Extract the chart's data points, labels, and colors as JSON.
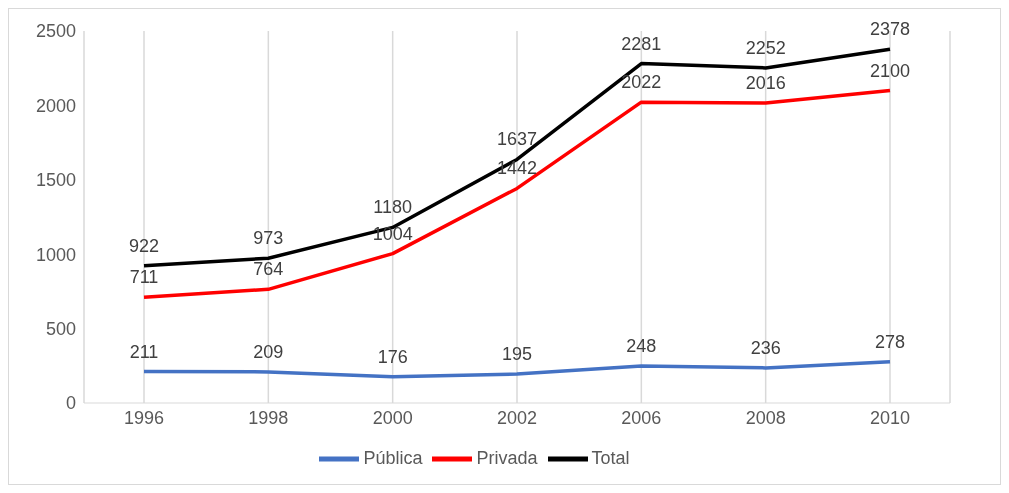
{
  "chart_data": {
    "type": "line",
    "categories": [
      "1996",
      "1998",
      "2000",
      "2002",
      "2006",
      "2008",
      "2010"
    ],
    "series": [
      {
        "name": "Pública",
        "color": "#4472c4",
        "values": [
          211,
          209,
          176,
          195,
          248,
          236,
          278
        ]
      },
      {
        "name": "Privada",
        "color": "#ff0000",
        "values": [
          711,
          764,
          1004,
          1442,
          2022,
          2016,
          2100
        ]
      },
      {
        "name": "Total",
        "color": "#000000",
        "values": [
          922,
          973,
          1180,
          1637,
          2281,
          2252,
          2378
        ]
      }
    ],
    "ylim": [
      0,
      2500
    ],
    "yticks": [
      0,
      500,
      1000,
      1500,
      2000,
      2500
    ],
    "grid": "x",
    "legend": "bottom",
    "marker": "none",
    "line_style": "solid",
    "data_labels": true
  }
}
